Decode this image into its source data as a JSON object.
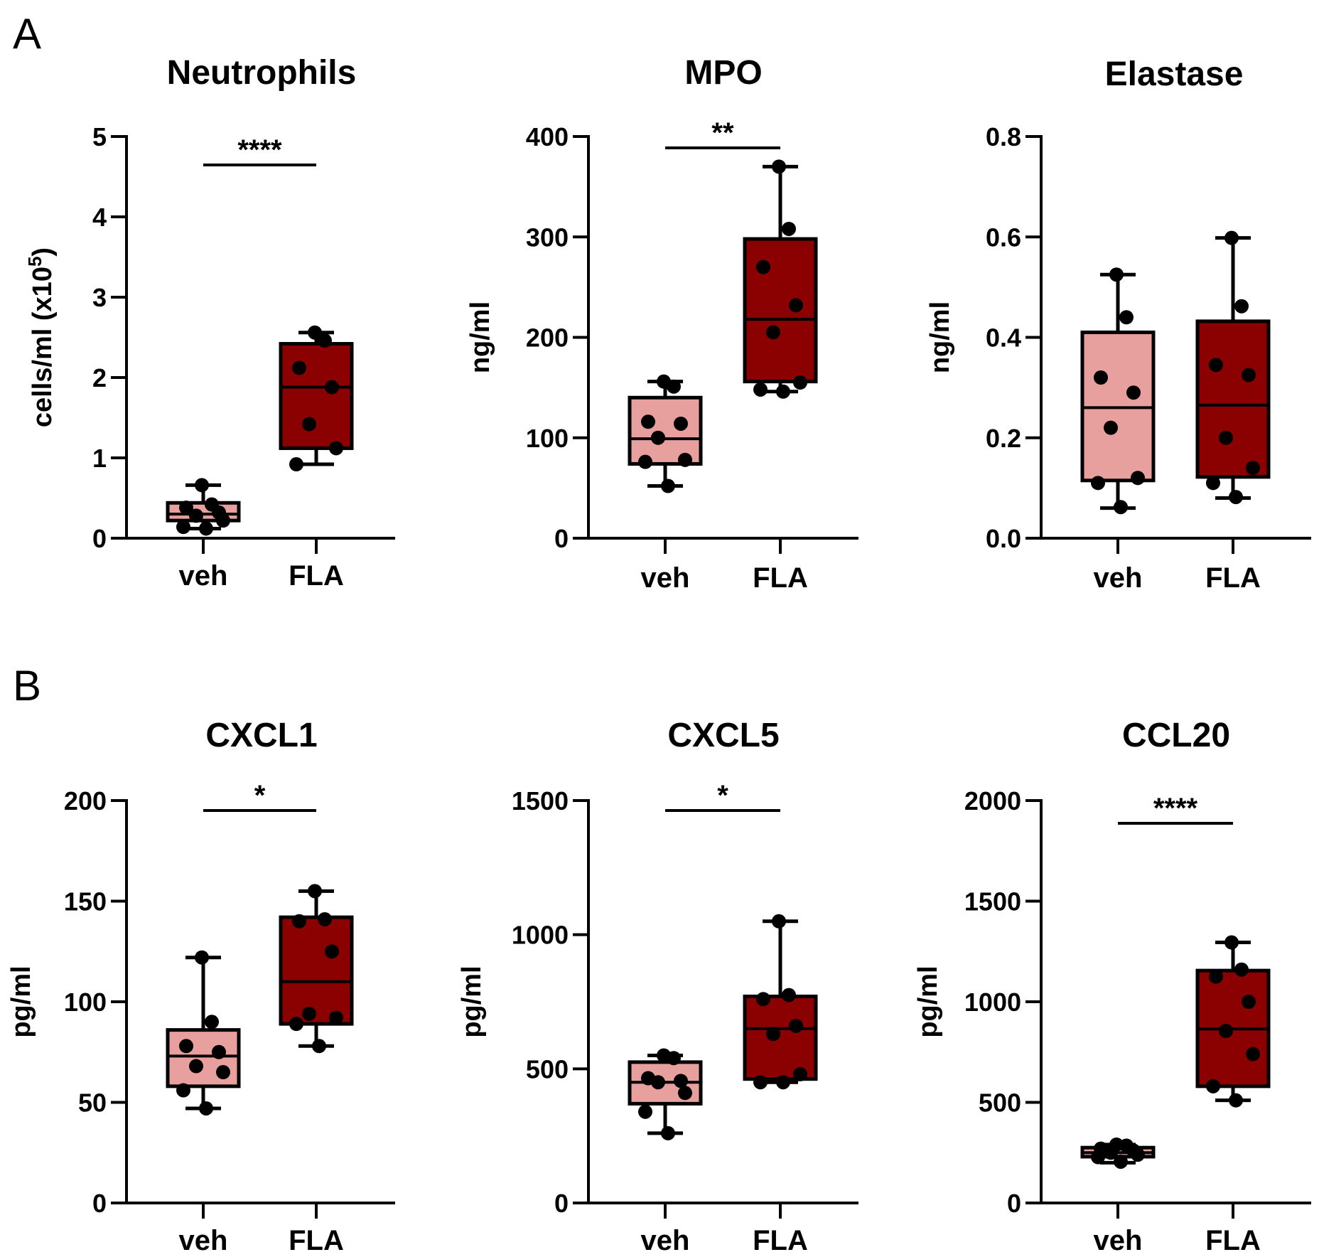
{
  "colors": {
    "veh": "#E8A09F",
    "FLA": "#8B0000",
    "ink": "#000000"
  },
  "panel_letters": [
    "A",
    "B"
  ],
  "chart_data": [
    {
      "type": "box",
      "panel": "A",
      "title": "Neutrophils",
      "ylabel": "cells/ml (x10",
      "ylabel_sup": "5",
      "ylabel_end": ")",
      "ylim": [
        0,
        5
      ],
      "yticks": [
        0,
        1,
        2,
        3,
        4,
        5
      ],
      "ytick_labels": [
        "0",
        "1",
        "2",
        "3",
        "4",
        "5"
      ],
      "categories": [
        "veh",
        "FLA"
      ],
      "groups": [
        {
          "name": "veh",
          "min": 0.12,
          "q1": 0.22,
          "median": 0.3,
          "q3": 0.44,
          "max": 0.66,
          "points": [
            0.66,
            0.42,
            0.38,
            0.32,
            0.28,
            0.22,
            0.14,
            0.12
          ]
        },
        {
          "name": "FLA",
          "min": 0.92,
          "q1": 1.12,
          "median": 1.88,
          "q3": 2.42,
          "max": 2.56,
          "points": [
            2.56,
            2.46,
            2.12,
            1.88,
            1.42,
            1.12,
            0.92
          ]
        }
      ],
      "significance": "****"
    },
    {
      "type": "box",
      "panel": "A",
      "title": "MPO",
      "ylabel": "ng/ml",
      "ylim": [
        0,
        400
      ],
      "yticks": [
        0,
        100,
        200,
        300,
        400
      ],
      "ytick_labels": [
        "0",
        "100",
        "200",
        "300",
        "400"
      ],
      "categories": [
        "veh",
        "FLA"
      ],
      "groups": [
        {
          "name": "veh",
          "min": 52,
          "q1": 74,
          "median": 99,
          "q3": 140,
          "max": 156,
          "points": [
            156,
            151,
            116,
            114,
            100,
            78,
            76,
            52
          ]
        },
        {
          "name": "FLA",
          "min": 146,
          "q1": 156,
          "median": 218,
          "q3": 298,
          "max": 370,
          "points": [
            370,
            308,
            270,
            232,
            205,
            155,
            148,
            146
          ]
        }
      ],
      "significance": "**"
    },
    {
      "type": "box",
      "panel": "A",
      "title": "Elastase",
      "ylabel": "ng/ml",
      "ylim": [
        0,
        0.8
      ],
      "yticks": [
        0,
        0.2,
        0.4,
        0.6,
        0.8
      ],
      "ytick_labels": [
        "0.0",
        "0.2",
        "0.4",
        "0.6",
        "0.8"
      ],
      "categories": [
        "veh",
        "FLA"
      ],
      "groups": [
        {
          "name": "veh",
          "min": 0.06,
          "q1": 0.115,
          "median": 0.26,
          "q3": 0.41,
          "max": 0.525,
          "points": [
            0.525,
            0.44,
            0.32,
            0.29,
            0.22,
            0.12,
            0.11,
            0.062
          ]
        },
        {
          "name": "FLA",
          "min": 0.08,
          "q1": 0.122,
          "median": 0.265,
          "q3": 0.432,
          "max": 0.598,
          "points": [
            0.598,
            0.462,
            0.345,
            0.325,
            0.2,
            0.14,
            0.11,
            0.082
          ]
        }
      ],
      "significance": ""
    },
    {
      "type": "box",
      "panel": "B",
      "title": "CXCL1",
      "ylabel": "pg/ml",
      "ylim": [
        0,
        200
      ],
      "yticks": [
        0,
        50,
        100,
        150,
        200
      ],
      "ytick_labels": [
        "0",
        "50",
        "100",
        "150",
        "200"
      ],
      "categories": [
        "veh",
        "FLA"
      ],
      "groups": [
        {
          "name": "veh",
          "min": 47,
          "q1": 58,
          "median": 73,
          "q3": 86,
          "max": 122,
          "points": [
            122,
            90,
            78,
            75,
            68,
            65,
            56,
            47
          ]
        },
        {
          "name": "FLA",
          "min": 78,
          "q1": 89,
          "median": 110,
          "q3": 142,
          "max": 155,
          "points": [
            155,
            141,
            140,
            125,
            94,
            92,
            89,
            78
          ]
        }
      ],
      "significance": "*"
    },
    {
      "type": "box",
      "panel": "B",
      "title": "CXCL5",
      "ylabel": "pg/ml",
      "ylim": [
        0,
        1500
      ],
      "yticks": [
        0,
        500,
        1000,
        1500
      ],
      "ytick_labels": [
        "0",
        "500",
        "1000",
        "1500"
      ],
      "categories": [
        "veh",
        "FLA"
      ],
      "groups": [
        {
          "name": "veh",
          "min": 260,
          "q1": 370,
          "median": 450,
          "q3": 525,
          "max": 550,
          "points": [
            550,
            540,
            465,
            455,
            450,
            410,
            340,
            260
          ]
        },
        {
          "name": "FLA",
          "min": 450,
          "q1": 462,
          "median": 650,
          "q3": 770,
          "max": 1050,
          "points": [
            1050,
            775,
            760,
            660,
            630,
            480,
            450,
            450
          ]
        }
      ],
      "significance": "*"
    },
    {
      "type": "box",
      "panel": "B",
      "title": "CCL20",
      "ylabel": "pg/ml",
      "ylim": [
        0,
        2000
      ],
      "yticks": [
        0,
        500,
        1000,
        1500,
        2000
      ],
      "ytick_labels": [
        "0",
        "500",
        "1000",
        "1500",
        "2000"
      ],
      "categories": [
        "veh",
        "FLA"
      ],
      "groups": [
        {
          "name": "veh",
          "min": 200,
          "q1": 230,
          "median": 250,
          "q3": 275,
          "max": 290,
          "points": [
            290,
            285,
            270,
            260,
            250,
            240,
            228,
            205
          ]
        },
        {
          "name": "FLA",
          "min": 510,
          "q1": 580,
          "median": 865,
          "q3": 1155,
          "max": 1295,
          "points": [
            1295,
            1160,
            1125,
            1000,
            855,
            740,
            580,
            510
          ]
        }
      ],
      "significance": "****"
    }
  ]
}
